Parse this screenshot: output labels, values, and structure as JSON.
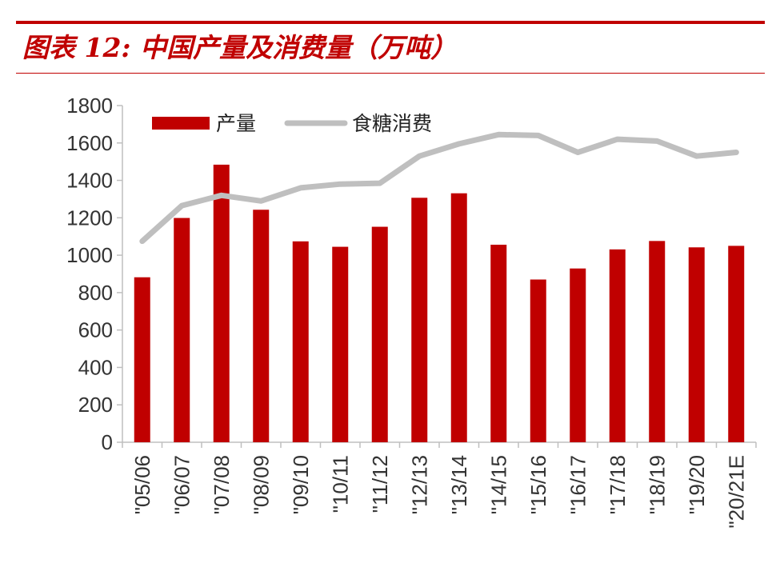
{
  "header": {
    "title": "图表 12:  中国产量及消费量（万吨）",
    "accent_color": "#C00000"
  },
  "chart_data": {
    "type": "bar",
    "title": "中国产量及消费量（万吨）",
    "xlabel": "",
    "ylabel": "",
    "ylim": [
      0,
      1800
    ],
    "yticks": [
      0,
      200,
      400,
      600,
      800,
      1000,
      1200,
      1400,
      1600,
      1800
    ],
    "grid": false,
    "legend_position": "top-left",
    "categories": [
      "\"05/06",
      "\"06/07",
      "\"07/08",
      "\"08/09",
      "\"09/10",
      "\"10/11",
      "\"11/12",
      "\"12/13",
      "\"13/14",
      "\"14/15",
      "\"15/16",
      "\"16/17",
      "\"17/18",
      "\"18/19",
      "\"19/20",
      "\"20/21E"
    ],
    "series": [
      {
        "name": "产量",
        "type": "bar",
        "color": "#C00000",
        "values": [
          882,
          1199,
          1484,
          1243,
          1074,
          1045,
          1152,
          1307,
          1331,
          1056,
          870,
          929,
          1031,
          1076,
          1042,
          1050
        ]
      },
      {
        "name": "食糖消费",
        "type": "line",
        "color": "#BFBFBF",
        "values": [
          1075,
          1265,
          1320,
          1290,
          1360,
          1380,
          1385,
          1530,
          1595,
          1645,
          1640,
          1550,
          1620,
          1610,
          1530,
          1550
        ]
      }
    ]
  }
}
